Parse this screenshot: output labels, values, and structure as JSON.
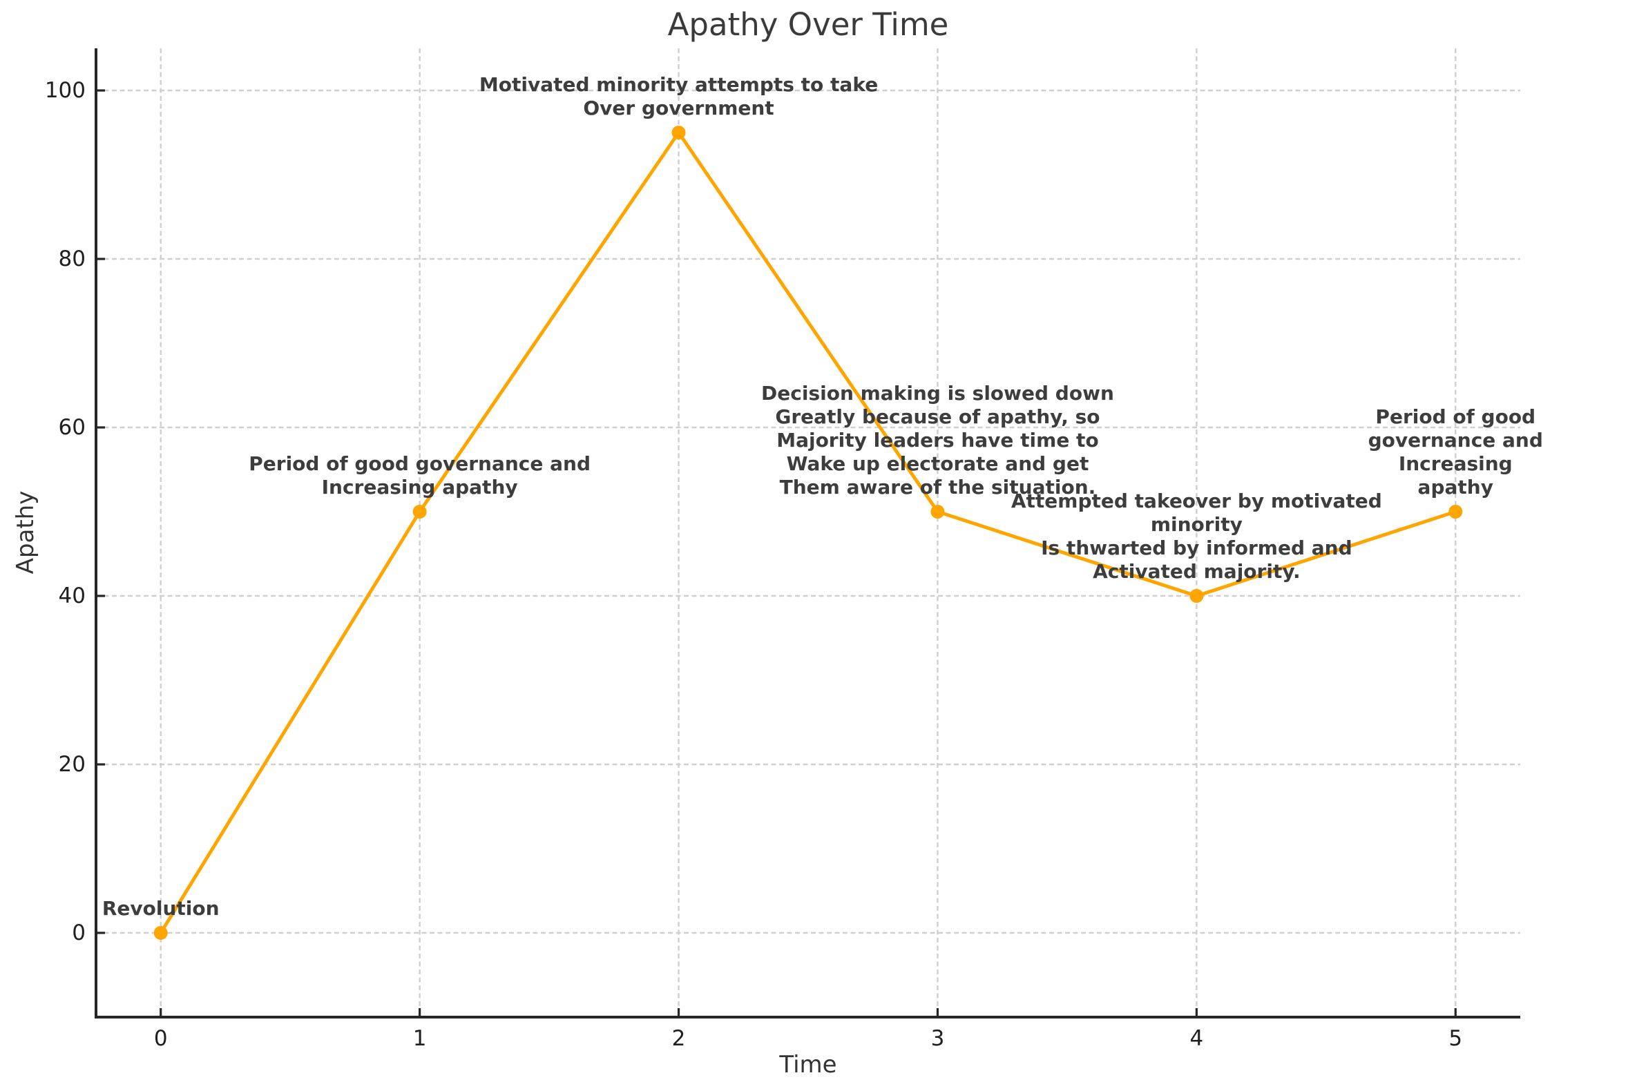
{
  "chart_data": {
    "type": "line",
    "title": "Apathy Over Time",
    "xlabel": "Time",
    "ylabel": "Apathy",
    "x": [
      0,
      1,
      2,
      3,
      4,
      5
    ],
    "y": [
      0,
      50,
      95,
      50,
      40,
      50
    ],
    "xticks": [
      "0",
      "1",
      "2",
      "3",
      "4",
      "5"
    ],
    "xtick_values": [
      0,
      1,
      2,
      3,
      4,
      5
    ],
    "yticks": [
      "0",
      "20",
      "40",
      "60",
      "80",
      "100"
    ],
    "ytick_values": [
      0,
      20,
      40,
      60,
      80,
      100
    ],
    "xlim": [
      -0.25,
      5.25
    ],
    "ylim": [
      -10,
      105
    ],
    "grid": true,
    "grid_style": "dashed",
    "legend": "none",
    "line_color": "#FFA500",
    "marker": "circle",
    "annotations": [
      {
        "x": 0,
        "y": 0,
        "lines": [
          "Revolution"
        ]
      },
      {
        "x": 1,
        "y": 50,
        "lines": [
          "Period of good governance and",
          "Increasing apathy"
        ]
      },
      {
        "x": 2,
        "y": 95,
        "lines": [
          "Motivated minority attempts to take",
          "Over government"
        ]
      },
      {
        "x": 3,
        "y": 50,
        "lines": [
          "Decision making is slowed down",
          "Greatly because of apathy, so",
          "Majority leaders have time to",
          "Wake up electorate and get",
          "Them aware of the situation."
        ]
      },
      {
        "x": 4,
        "y": 40,
        "lines": [
          "Attempted takeover by motivated minority",
          "Is thwarted by informed and",
          "Activated majority."
        ]
      },
      {
        "x": 5,
        "y": 50,
        "lines": [
          "Period of good governance and",
          "Increasing apathy"
        ]
      }
    ],
    "colors": {
      "line": "#FFA500",
      "marker": "#FFA500",
      "annotation_text": "#3d3d3d",
      "axis_spine": "#262626",
      "tick_label": "#1f1f1f",
      "grid": "#cfcfcf",
      "title": "#3a3a3a",
      "background": "#ffffff"
    }
  }
}
